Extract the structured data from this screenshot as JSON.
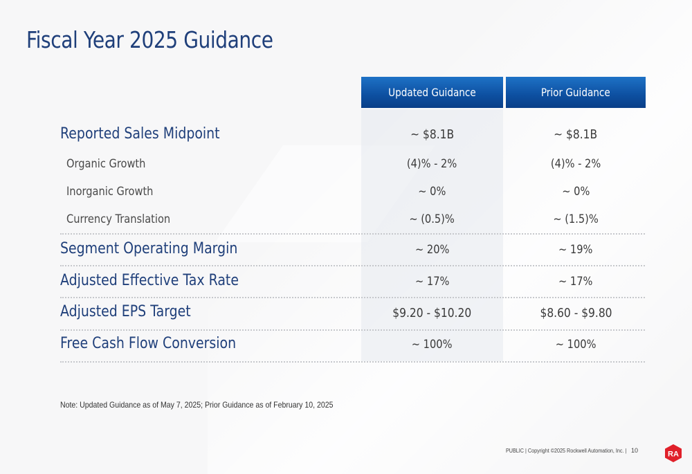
{
  "title": "Fiscal Year 2025 Guidance",
  "columns": {
    "updated": "Updated Guidance",
    "prior": "Prior Guidance"
  },
  "rows": [
    {
      "label": "Reported Sales Midpoint",
      "updated": "~ $8.1B",
      "prior": "~ $8.1B"
    },
    {
      "label": "Organic Growth",
      "updated": "(4)% - 2%",
      "prior": "(4)% - 2%"
    },
    {
      "label": "Inorganic Growth",
      "updated": "~ 0%",
      "prior": "~ 0%"
    },
    {
      "label": "Currency Translation",
      "updated": "~ (0.5)%",
      "prior": "~ (1.5)%"
    },
    {
      "label": "Segment Operating Margin",
      "updated": "~ 20%",
      "prior": "~ 19%"
    },
    {
      "label": "Adjusted Effective Tax Rate",
      "updated": "~ 17%",
      "prior": "~ 17%"
    },
    {
      "label": "Adjusted EPS Target",
      "updated": "$9.20 - $10.20",
      "prior": "$8.60 - $9.80"
    },
    {
      "label": "Free Cash Flow Conversion",
      "updated": "~ 100%",
      "prior": "~ 100%"
    }
  ],
  "note": "Note: Updated Guidance as of May 7, 2025; Prior Guidance as of February 10, 2025",
  "footer": {
    "copyright": "PUBLIC | Copyright ©2025 Rockwell Automation, Inc. |",
    "page_number": "10",
    "logo_text": "RA"
  },
  "colors": {
    "title": "#1f3f7a",
    "header_bg": "#0d4fa0",
    "logo_red": "#e0202a"
  }
}
